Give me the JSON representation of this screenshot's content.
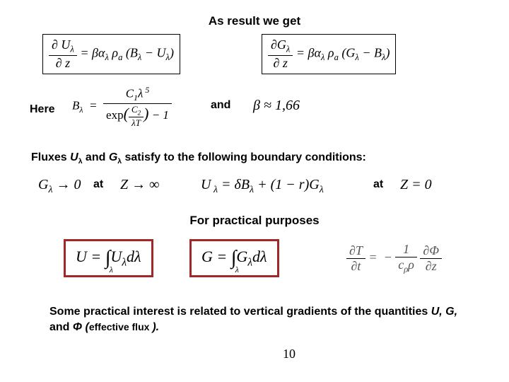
{
  "title": "As result we get",
  "eq1_html": "<span class=\"frac\"><span class=\"num\"><span class=\"upright\">&part;</span> U<sub>&lambda;</sub></span><span class=\"den\"><span class=\"upright\">&part;</span> z</span></span> = <i>&beta;&alpha;</i><sub>&lambda;</sub>&nbsp;<i>&rho;</i><sub>a</sub> (<i>B</i><sub>&lambda;</sub> &minus; <i>U</i><sub>&lambda;</sub>)",
  "eq2_html": "<span class=\"frac\"><span class=\"num\"><span class=\"upright\">&part;</span><i>G</i><sub>&lambda;</sub></span><span class=\"den\"><span class=\"upright\">&part;</span> z</span></span> = <i>&beta;&alpha;</i><sub>&lambda;</sub>&nbsp;<i>&rho;</i><sub>a</sub> (<i>G</i><sub>&lambda;</sub> &minus; <i>B</i><sub>&lambda;</sub>)",
  "here_label": "Here",
  "and_label": "and",
  "planck_html": "<i>B</i><sub>&lambda;</sub> &nbsp;= &nbsp;<span class=\"frac\"><span class=\"num\"><i>C</i><sub>1</sub><i>&lambda;</i><sup>&nbsp;5</sup></span><span class=\"den\"><span class=\"upright\">exp</span>&#8288;<span style=\"font-size:22px;\">(</span><span class=\"frac\" style=\"font-size:13px;\"><span class=\"num\"><i>C</i><sub>2</sub></span><span class=\"den\"><i>&lambda;T</i></span></span><span style=\"font-size:22px;\">)</span> &minus; 1</span></span>",
  "beta_html": "<i>&beta;</i> &asymp; 1,66",
  "fluxes_line_html": "Fluxes <i>U<span class=\"arial-sub\">&lambda;</span></i> and <i>G<span class=\"arial-sub\">&lambda;</span></i> satisfy to the following boundary conditions:",
  "bc1_html": "<i>G</i><sub>&lambda;</sub> &rarr; 0",
  "at1": "at",
  "bc2_html": "<i>Z</i> &rarr; &infin;",
  "bc3_html": "<i>U</i><sub>&nbsp;&lambda;</sub> = <i>&delta;B</i><sub>&lambda;</sub> + (1 &minus; <i>r</i>)<i>G</i><sub>&lambda;</sub>",
  "at2": "at",
  "bc4_html": "<i>Z</i> = 0",
  "practical_heading": "For practical purposes",
  "intU_html": "<i>U</i> = <span class=\"int\">&#8747;<span class=\"int-sub\">&lambda;</span></span><i>U</i><sub>&lambda;</sub><i>d&lambda;</i>",
  "intG_html": "<i>G</i> = <span class=\"int\">&#8747;<span class=\"int-sub\">&lambda;</span></span><i>G</i><sub>&lambda;</sub><i>d&lambda;</i>",
  "heat_eq_html": "<span class=\"frac\"><span class=\"num\"><span class=\"upright\">&part;</span><i>T</i></span><span class=\"den\"><span class=\"upright\">&part;</span><i>t</i></span></span> = &nbsp;&minus; <span class=\"frac\"><span class=\"num\">1</span><span class=\"den\"><i>c</i><sub>&rho;</sub><i>&rho;</i></span></span> <span class=\"frac\"><span class=\"num\"><span class=\"upright\">&part;</span><i>&Phi;</i></span><span class=\"den\"><span class=\"upright\">&part;</span><i>z</i></span></span>",
  "closing_html": "Some practical interest is related to vertical gradients of the quantities <i>U, G,</i> and <i>&Phi; (</i><span style=\"font-size:14px;\">effective flux </span><i>).</i>",
  "page_number": "10"
}
